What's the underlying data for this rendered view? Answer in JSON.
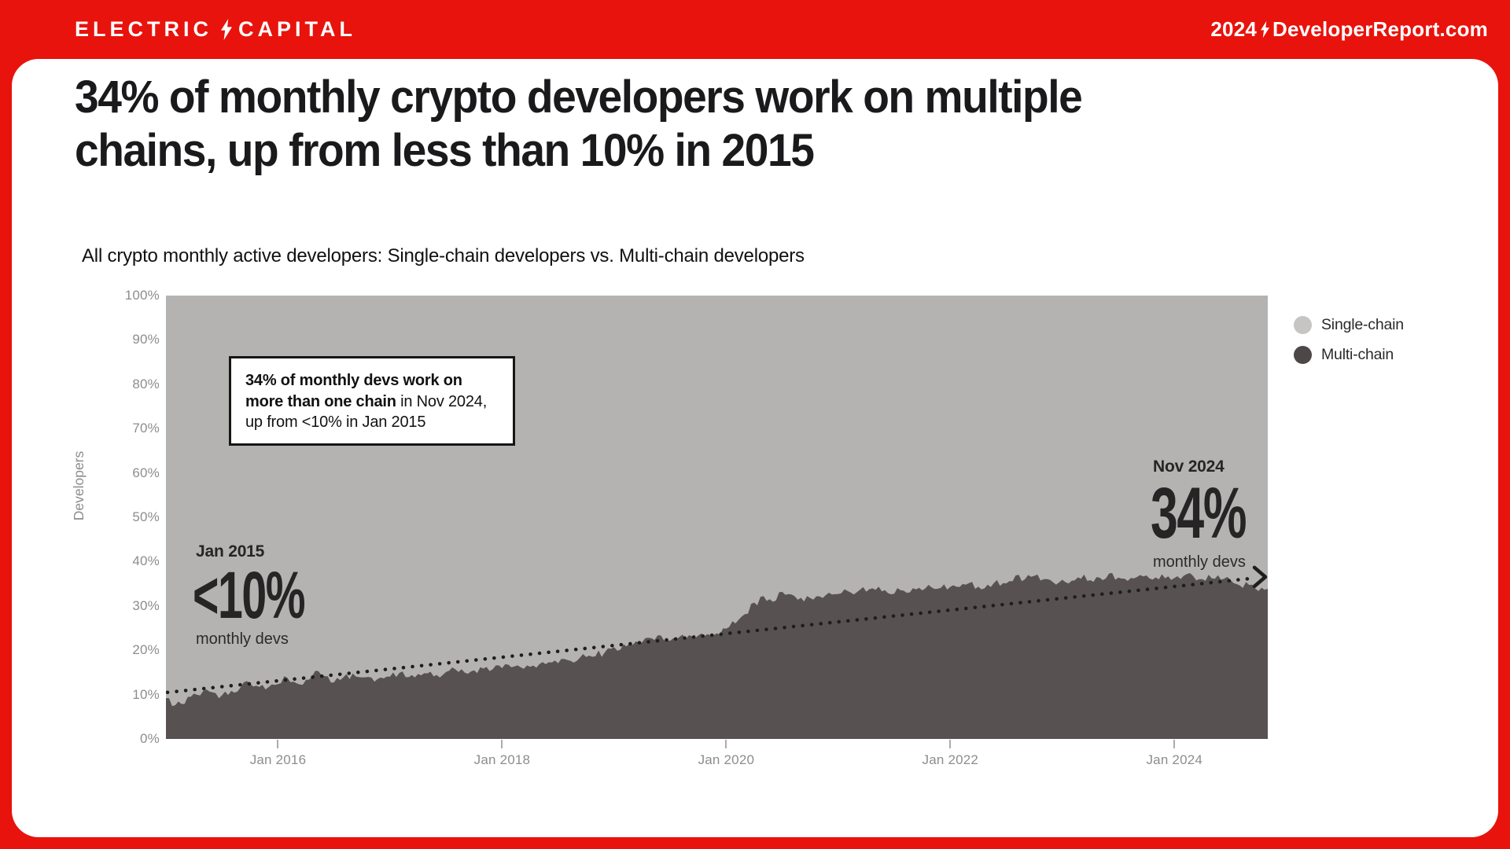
{
  "page": {
    "background_red": "#e8130c",
    "card_background": "#ffffff"
  },
  "header": {
    "logo": {
      "word1": "ELECTRIC",
      "word2": "CAPITAL",
      "icon": "lightning-bolt-icon"
    },
    "site": {
      "year": "2024",
      "domain": "DeveloperReport.com",
      "icon": "lightning-bolt-icon"
    }
  },
  "headline": {
    "lines": [
      "34% of monthly crypto developers work on multiple",
      "chains, up from less than 10% in 2015"
    ]
  },
  "subtitle": "All crypto monthly active developers: Single-chain developers vs. Multi-chain developers",
  "legend": {
    "items": [
      {
        "label": "Single-chain",
        "color": "#c7c4c4"
      },
      {
        "label": "Multi-chain",
        "color": "#4d4748"
      }
    ]
  },
  "callout": {
    "bold_text": "34% of monthly devs work on more than one chain",
    "regular_text": " in Nov 2024, up from <10% in Jan 2015"
  },
  "annotations": {
    "start": {
      "date": "Jan 2015",
      "value": "<10%",
      "caption": "monthly devs"
    },
    "end": {
      "date": "Nov 2024",
      "value": "34%",
      "caption": "monthly devs"
    }
  },
  "chart_data": {
    "type": "area",
    "subtype": "100-percent-stacked",
    "title": "All crypto monthly active developers: Single-chain developers vs. Multi-chain developers",
    "xlabel": "",
    "ylabel": "Developers",
    "ylim": [
      0,
      100
    ],
    "y_ticks_pct": [
      0,
      10,
      20,
      30,
      40,
      50,
      60,
      70,
      80,
      90,
      100
    ],
    "x_start": "Jan 2015",
    "x_end": "Nov 2024",
    "x_ticks": [
      {
        "label": "Jan 2016",
        "month_index": 12
      },
      {
        "label": "Jan 2018",
        "month_index": 36
      },
      {
        "label": "Jan 2020",
        "month_index": 60
      },
      {
        "label": "Jan 2022",
        "month_index": 84
      },
      {
        "label": "Jan 2024",
        "month_index": 108
      }
    ],
    "grid": false,
    "legend_position": "top-right",
    "plot_background": "#b5b2b2",
    "series": [
      {
        "name": "Multi-chain",
        "color": "#575152",
        "unit": "percent of monthly active developers",
        "cadence": "monthly, Jan 2015 through Nov 2024",
        "values_pct": [
          9,
          7.5,
          8,
          10,
          11,
          10.5,
          9.5,
          10.5,
          11.5,
          12.5,
          11.5,
          12,
          12.5,
          14,
          12.5,
          13.5,
          15,
          14.5,
          13,
          14,
          14.5,
          14,
          13.5,
          13.5,
          14,
          14.5,
          14,
          14.5,
          15,
          14.5,
          15,
          15.5,
          15,
          15.5,
          16,
          15.5,
          16,
          16.5,
          16,
          16.5,
          17,
          17.5,
          17,
          17.5,
          18,
          18.5,
          19,
          19.5,
          20.5,
          21,
          21.5,
          22,
          22.5,
          23,
          22.5,
          23,
          23.5,
          23,
          23.5,
          24,
          25,
          26,
          28,
          30.5,
          32,
          31,
          33.5,
          32.5,
          31.5,
          32,
          32.5,
          33,
          33,
          33.5,
          33,
          33.5,
          34,
          33.5,
          33,
          33.5,
          34,
          33.5,
          34,
          34,
          34,
          34.5,
          35,
          34.5,
          35,
          35.5,
          35,
          36.5,
          36,
          36.5,
          36,
          35.5,
          35.5,
          36,
          36.5,
          36,
          36.5,
          37,
          36.5,
          36,
          36.5,
          37,
          36.5,
          36.5,
          36.5,
          37,
          36.5,
          36,
          36.5,
          36,
          35.5,
          35,
          34.5,
          33.5,
          34
        ]
      },
      {
        "name": "Single-chain",
        "color": "#b5b2b2",
        "derived": "100 minus Multi-chain share"
      }
    ],
    "trendline": {
      "style": "dotted",
      "color": "#1f1d1d",
      "start_pct": 10.5,
      "end_pct": 36.3,
      "arrow": true
    }
  }
}
